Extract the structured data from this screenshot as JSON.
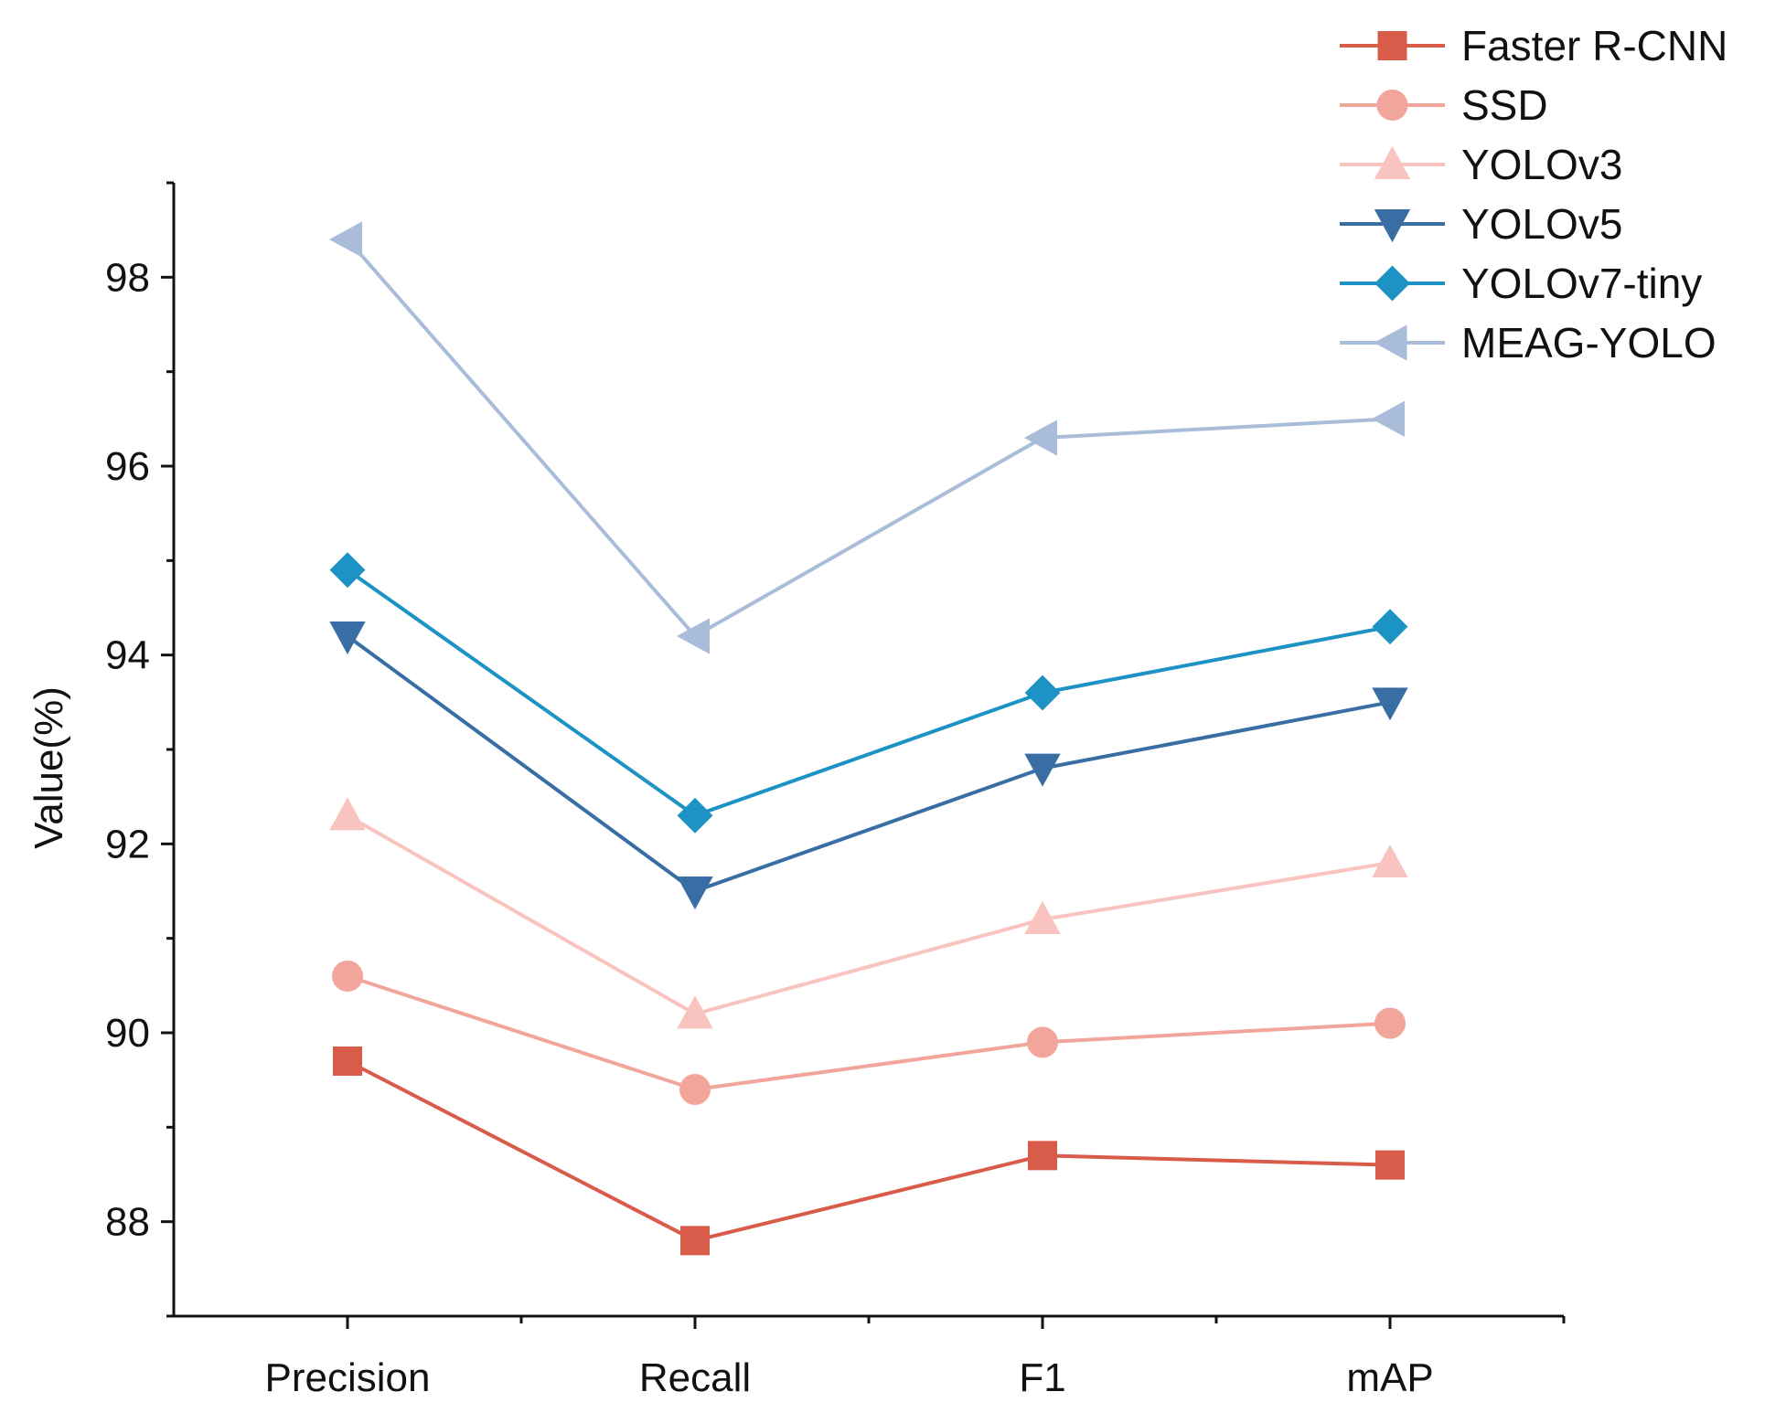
{
  "chart_data": {
    "type": "line",
    "title": "",
    "xlabel": "",
    "ylabel": "Value(%)",
    "categories": [
      "Precision",
      "Recall",
      "F1",
      "mAP"
    ],
    "ylim": [
      87,
      99
    ],
    "yticks": [
      88,
      90,
      92,
      94,
      96,
      98
    ],
    "grid": false,
    "legend_position": "top-right",
    "series": [
      {
        "name": "Faster R-CNN",
        "marker": "square",
        "color": "#d95b4a",
        "values": [
          89.7,
          87.8,
          88.7,
          88.6
        ]
      },
      {
        "name": "SSD",
        "marker": "circle",
        "color": "#f2a69b",
        "values": [
          90.6,
          89.4,
          89.9,
          90.1
        ]
      },
      {
        "name": "YOLOv3",
        "marker": "triangle-up",
        "color": "#f9c3bf",
        "values": [
          92.3,
          90.2,
          91.2,
          91.8
        ]
      },
      {
        "name": "YOLOv5",
        "marker": "triangle-down",
        "color": "#386ea3",
        "values": [
          94.2,
          91.5,
          92.8,
          93.5
        ]
      },
      {
        "name": "YOLOv7-tiny",
        "marker": "diamond",
        "color": "#1c93c4",
        "values": [
          94.9,
          92.3,
          93.6,
          94.3
        ]
      },
      {
        "name": "MEAG-YOLO",
        "marker": "triangle-left",
        "color": "#a9bcd9",
        "values": [
          98.4,
          94.2,
          96.3,
          96.5
        ]
      }
    ]
  }
}
